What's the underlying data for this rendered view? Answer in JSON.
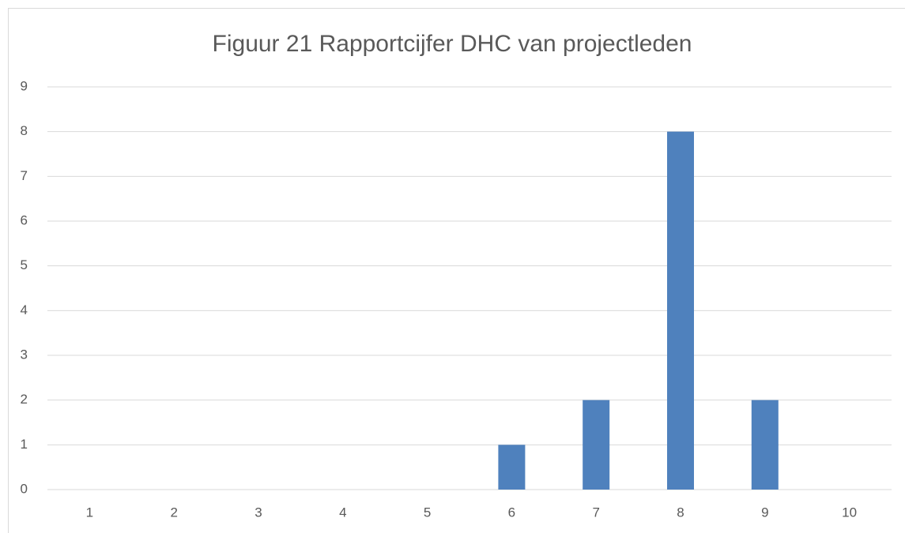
{
  "chart_data": {
    "type": "bar",
    "title": "Figuur 21 Rapportcijfer DHC van projectleden",
    "categories": [
      "1",
      "2",
      "3",
      "4",
      "5",
      "6",
      "7",
      "8",
      "9",
      "10"
    ],
    "values": [
      0,
      0,
      0,
      0,
      0,
      1,
      2,
      8,
      2,
      0
    ],
    "color": "#4f81bd",
    "ylim": [
      0,
      9
    ],
    "yticks": [
      0,
      1,
      2,
      3,
      4,
      5,
      6,
      7,
      8,
      9
    ],
    "grid": true
  }
}
